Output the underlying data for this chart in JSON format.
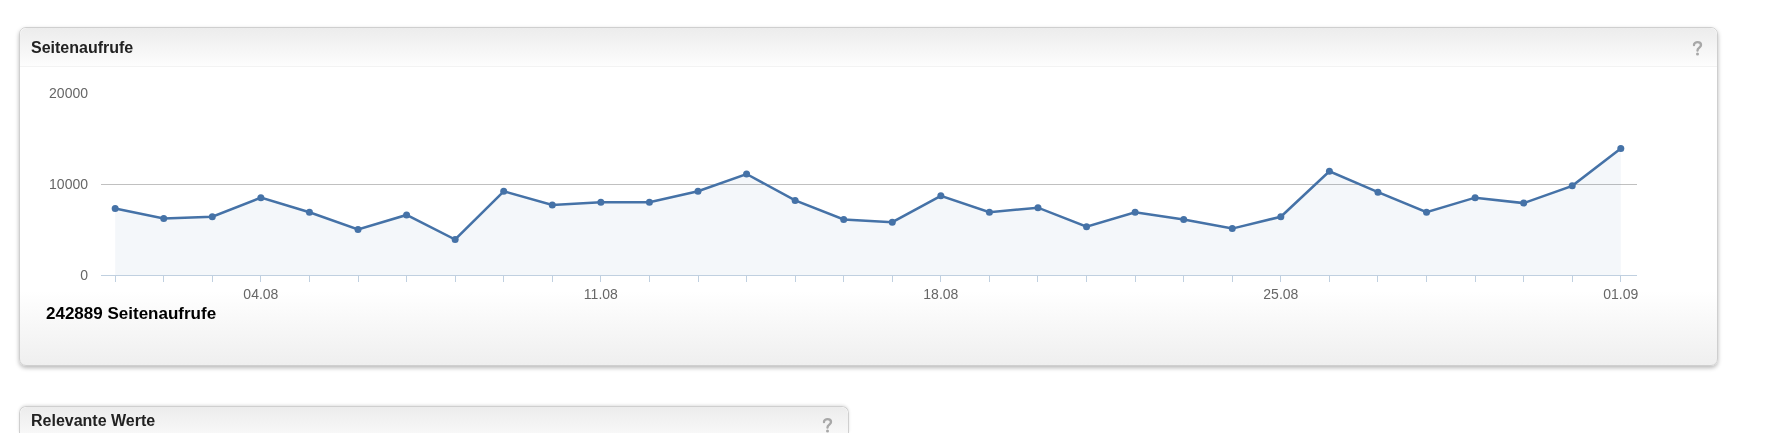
{
  "chart_data": {
    "type": "area",
    "title": "Seitenaufrufe",
    "x": [
      "--08-01",
      "--08-02",
      "--08-03",
      "--08-04",
      "--08-05",
      "--08-06",
      "--08-07",
      "--08-08",
      "--08-09",
      "--08-10",
      "--08-11",
      "--08-12",
      "--08-13",
      "--08-14",
      "--08-15",
      "--08-16",
      "--08-17",
      "--08-18",
      "--08-19",
      "--08-20",
      "--08-21",
      "--08-22",
      "--08-23",
      "--08-24",
      "--08-25",
      "--08-26",
      "--08-27",
      "--08-28",
      "--08-29",
      "--08-30",
      "--08-31",
      "--09-01"
    ],
    "series": [
      {
        "color": "#4572a7",
        "values": [
          7300,
          6200,
          6400,
          8500,
          6900,
          5000,
          6600,
          3900,
          9200,
          7700,
          8000,
          8000,
          9200,
          11100,
          8200,
          6100,
          5800,
          8700,
          6900,
          7400,
          5300,
          6900,
          6100,
          5100,
          6400,
          11400,
          9100,
          6900,
          8500,
          7900,
          9800,
          13900
        ]
      }
    ],
    "xlim": [
      "--07-31T17:00",
      "--09-01T08:00"
    ],
    "xticks": [
      {
        "value": "--08-01",
        "label": null
      },
      {
        "value": "--08-02",
        "label": null
      },
      {
        "value": "--08-03",
        "label": null
      },
      {
        "value": "--08-04",
        "label": "04.08"
      },
      {
        "value": "--08-05",
        "label": null
      },
      {
        "value": "--08-06",
        "label": null
      },
      {
        "value": "--08-07",
        "label": null
      },
      {
        "value": "--08-08",
        "label": null
      },
      {
        "value": "--08-09",
        "label": null
      },
      {
        "value": "--08-10",
        "label": null
      },
      {
        "value": "--08-11",
        "label": "11.08"
      },
      {
        "value": "--08-12",
        "label": null
      },
      {
        "value": "--08-13",
        "label": null
      },
      {
        "value": "--08-14",
        "label": null
      },
      {
        "value": "--08-15",
        "label": null
      },
      {
        "value": "--08-16",
        "label": null
      },
      {
        "value": "--08-17",
        "label": null
      },
      {
        "value": "--08-18",
        "label": "18.08"
      },
      {
        "value": "--08-19",
        "label": null
      },
      {
        "value": "--08-20",
        "label": null
      },
      {
        "value": "--08-21",
        "label": null
      },
      {
        "value": "--08-22",
        "label": null
      },
      {
        "value": "--08-23",
        "label": null
      },
      {
        "value": "--08-24",
        "label": null
      },
      {
        "value": "--08-25",
        "label": "25.08"
      },
      {
        "value": "--08-26",
        "label": null
      },
      {
        "value": "--08-27",
        "label": null
      },
      {
        "value": "--08-28",
        "label": null
      },
      {
        "value": "--08-29",
        "label": null
      },
      {
        "value": "--08-30",
        "label": null
      },
      {
        "value": "--08-31",
        "label": null
      },
      {
        "value": "--09-01",
        "label": "01.09"
      }
    ],
    "ylim": [
      0,
      20000
    ],
    "yticks": [
      0,
      10000,
      20000
    ],
    "grid": "y",
    "marker": "circle",
    "annotations": [
      "242889 Seitenaufrufe",
      "Relevante Werte"
    ]
  }
}
